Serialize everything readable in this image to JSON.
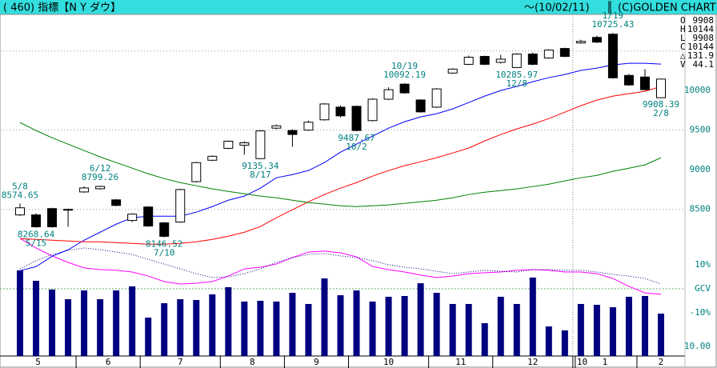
{
  "chart_data": {
    "type": "candlestick",
    "title": "( 460) 指標【N Y ダウ】",
    "date_label": "～(10/02/11)",
    "copyright": "(C)GOLDEN CHART",
    "categories": [
      "5",
      null,
      null,
      null,
      "6",
      null,
      null,
      null,
      "7",
      null,
      null,
      null,
      null,
      "8",
      null,
      null,
      null,
      "9",
      null,
      null,
      null,
      "10",
      null,
      null,
      null,
      null,
      "11",
      null,
      null,
      null,
      "12",
      null,
      null,
      null,
      null,
      "1",
      null,
      null,
      null,
      "2",
      null
    ],
    "year_label": "10",
    "open": [
      8430,
      8430,
      8510,
      8500,
      8720,
      8760,
      8620,
      8360,
      8530,
      8330,
      8340,
      8850,
      9120,
      9270,
      9310,
      9140,
      9525,
      9495,
      9500,
      9630,
      9790,
      9800,
      9620,
      9890,
      10080,
      9880,
      9790,
      10220,
      10330,
      10430,
      10355,
      10290,
      10460,
      10410,
      10530,
      10600,
      10670,
      10710,
      10190,
      10170,
      9908.39
    ],
    "high": [
      8574.65,
      8450,
      8520,
      8510,
      8790,
      8799.26,
      8630,
      8450,
      8540,
      8340,
      8760,
      9100,
      9180,
      9370,
      9360,
      9500,
      9570,
      9510,
      9620,
      9840,
      9810,
      9810,
      9900,
      10040,
      10092.19,
      9890,
      10030,
      10280,
      10440,
      10440,
      10450,
      10470,
      10480,
      10520,
      10540,
      10640,
      10690,
      10725.43,
      10210,
      10270,
      10144
    ],
    "low": [
      8415,
      8268.64,
      8270,
      8280,
      8710,
      8750,
      8540,
      8340,
      8280,
      8146.52,
      8330,
      8840,
      9110,
      9260,
      9190,
      9135.34,
      9510,
      9290,
      9490,
      9620,
      9660,
      9487.67,
      9610,
      9880,
      9960,
      9720,
      9780,
      10210,
      10320,
      10320,
      10340,
      10285.97,
      10320,
      10400,
      10420,
      10590,
      10600,
      10150,
      10060,
      10000,
      9908.39
    ],
    "close": [
      8520,
      8280,
      8280,
      8490,
      8770,
      8790,
      8550,
      8440,
      8290,
      8160,
      8750,
      9090,
      9170,
      9360,
      9340,
      9490,
      9555,
      9445,
      9600,
      9830,
      9680,
      9495,
      9890,
      10010,
      9970,
      9730,
      10020,
      10270,
      10420,
      10330,
      10395,
      10460,
      10330,
      10510,
      10430,
      10620,
      10610,
      10160,
      10070,
      10010,
      10144
    ],
    "up_color": "#ffffff",
    "down_color": "#000000",
    "series": [
      {
        "color": "#0000ff",
        "values": [
          7727,
          7778,
          7909,
          7990,
          8111,
          8212,
          8313,
          8394,
          8414,
          8414,
          8414,
          8465,
          8535,
          8616,
          8667,
          8768,
          8899,
          8939,
          8990,
          9091,
          9222,
          9323,
          9424,
          9525,
          9606,
          9667,
          9707,
          9768,
          9848,
          9929,
          10000,
          10051,
          10111,
          10162,
          10202,
          10253,
          10283,
          10323,
          10343,
          10343,
          10333
        ]
      },
      {
        "color": "#ff0000",
        "values": [
          8131,
          8121,
          8111,
          8101,
          8091,
          8091,
          8081,
          8071,
          8061,
          8061,
          8071,
          8091,
          8121,
          8162,
          8212,
          8283,
          8394,
          8495,
          8596,
          8687,
          8768,
          8838,
          8919,
          8990,
          9051,
          9101,
          9152,
          9212,
          9273,
          9364,
          9444,
          9515,
          9576,
          9646,
          9727,
          9808,
          9879,
          9929,
          9960,
          9990,
          10051
        ]
      },
      {
        "color": "#008000",
        "values": [
          9596,
          9495,
          9404,
          9323,
          9242,
          9162,
          9091,
          9020,
          8949,
          8889,
          8838,
          8798,
          8758,
          8727,
          8697,
          8667,
          8646,
          8616,
          8586,
          8566,
          8545,
          8535,
          8545,
          8556,
          8576,
          8596,
          8616,
          8646,
          8687,
          8717,
          8737,
          8758,
          8788,
          8818,
          8859,
          8899,
          8929,
          8980,
          9020,
          9061,
          9152
        ]
      }
    ],
    "ylim": [
      6650,
      10960
    ],
    "yticks": [
      8500,
      9000,
      9500,
      10000
    ],
    "ygrid": [
      8500,
      9500,
      10500
    ],
    "tick_color": "#008080",
    "annotations": [
      {
        "date": "5/8",
        "value": 8574.65
      },
      {
        "date": "5/15",
        "value": 8268.64
      },
      {
        "date": "6/12",
        "value": 8799.26
      },
      {
        "date": "7/10",
        "value": 8146.52
      },
      {
        "date": "8/17",
        "value": 9135.34
      },
      {
        "date": "10/2",
        "value": 9487.67
      },
      {
        "date": "10/19",
        "value": 10092.19
      },
      {
        "date": "12/8",
        "value": 10285.97
      },
      {
        "date": "1/19",
        "value": 10725.43
      },
      {
        "date": "2/8",
        "value": 9908.39
      }
    ],
    "info": [
      {
        "label": "O",
        "value": 9908
      },
      {
        "label": "H",
        "value": 10144
      },
      {
        "label": "L",
        "value": 9908
      },
      {
        "label": "C",
        "value": 10144
      },
      {
        "label": "△",
        "value": 131.9
      },
      {
        "label": "V",
        "value": 44.1
      }
    ],
    "volume": {
      "color": "#000080",
      "values": [
        89.2,
        78.3,
        69.2,
        59.2,
        68.3,
        59.2,
        68.3,
        72.5,
        40,
        55,
        59.2,
        58.3,
        64.2,
        71.7,
        56.7,
        57.5,
        56.7,
        65.8,
        54.2,
        80.8,
        63.3,
        68.3,
        56.7,
        61.7,
        62.5,
        75.8,
        65.8,
        54.2,
        54.2,
        34.2,
        61.7,
        54.2,
        81.7,
        30.8,
        26.7,
        54.2,
        53.3,
        50.8,
        61.7,
        62.5,
        44.1
      ],
      "ylim": [
        0,
        355.8
      ],
      "yticks": [
        {
          "value": 10,
          "label": "10.00"
        }
      ]
    },
    "oscillator": {
      "ylim": [
        -28,
        114.3
      ],
      "yticks": [
        {
          "value": 10,
          "label": "10%"
        },
        {
          "value": 0,
          "label": "GCV"
        },
        {
          "value": -10,
          "label": "-10%"
        }
      ],
      "series": [
        {
          "color": "#ff00ff",
          "dash": false,
          "values": [
            21,
            17,
            13.7,
            11,
            8.7,
            8,
            7.7,
            7,
            5.3,
            3,
            2,
            2.3,
            3,
            5.3,
            8.3,
            9,
            10.3,
            13,
            15.3,
            15.7,
            15,
            13.3,
            9.3,
            8,
            7,
            5.7,
            4.7,
            5.3,
            6.3,
            6.7,
            7,
            7.7,
            8,
            7.7,
            7,
            7,
            6.3,
            4.3,
            1,
            -1.7,
            -2.3
          ]
        },
        {
          "color": "#000080",
          "dash": true,
          "values": [
            8.3,
            11.7,
            14.3,
            16,
            17,
            16.3,
            15.3,
            14.3,
            12.3,
            10.3,
            8.3,
            6.3,
            4.7,
            5,
            6.3,
            8.3,
            11,
            13,
            14.3,
            14.7,
            13.7,
            13,
            11.7,
            10,
            9,
            8.3,
            7.3,
            6.3,
            7,
            7.7,
            7.3,
            7,
            8,
            8,
            7.7,
            7.7,
            7,
            6,
            5.3,
            4.3,
            2
          ]
        }
      ]
    }
  }
}
